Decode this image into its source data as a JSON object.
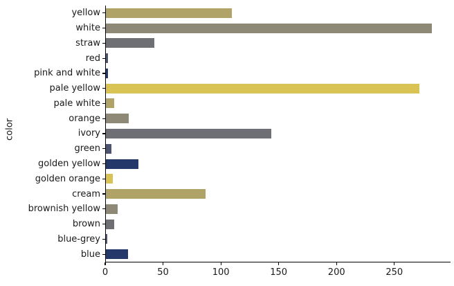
{
  "chart_data": {
    "type": "bar",
    "orientation": "horizontal",
    "title": "",
    "xlabel": "",
    "ylabel": "color",
    "categories": [
      "yellow",
      "white",
      "straw",
      "red",
      "pink and white",
      "pale yellow",
      "pale white",
      "orange",
      "ivory",
      "green",
      "golden yellow",
      "golden orange",
      "cream",
      "brownish yellow",
      "brown",
      "blue-grey",
      "blue"
    ],
    "values": [
      109,
      282,
      42,
      2,
      2,
      271,
      7,
      20,
      143,
      5,
      28,
      6,
      86,
      10,
      7,
      1,
      19
    ],
    "bar_colors": [
      "#afa368",
      "#8e8876",
      "#6d6f74",
      "#4c5470",
      "#24386a",
      "#d9c355",
      "#afa368",
      "#8e8876",
      "#6d6f74",
      "#4c5470",
      "#24386a",
      "#d9c355",
      "#afa368",
      "#8e8876",
      "#6d6f74",
      "#4c5470",
      "#24386a"
    ],
    "x_ticks": [
      "0",
      "50",
      "100",
      "150",
      "200",
      "250"
    ],
    "x_tick_values": [
      0,
      50,
      100,
      150,
      200,
      250
    ],
    "xlim": [
      0,
      298
    ],
    "grid": false,
    "legend": false
  },
  "style": {
    "axis_color": "#000000",
    "text_color": "#1a1a1a",
    "background": "#ffffff"
  }
}
